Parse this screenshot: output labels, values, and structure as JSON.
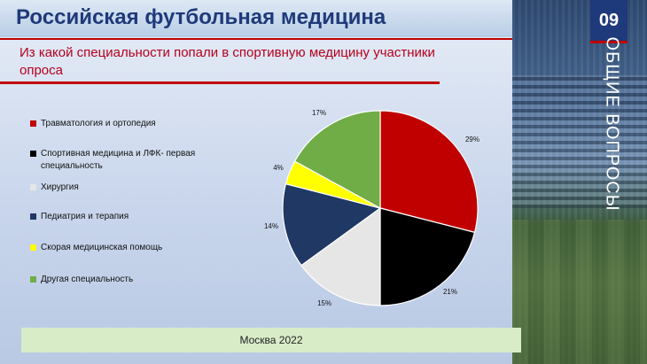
{
  "slide": {
    "title": "Российская футбольная медицина",
    "subtitle": "Из какой специальности попали в спортивную медицину участники опроса",
    "slide_number": "09",
    "section_title": "ОБЩИЕ ВОПРОСЫ",
    "footer": "Москва 2022"
  },
  "chart_data": {
    "type": "pie",
    "title": "",
    "slices": [
      {
        "label": "Травматология и ортопедия",
        "value": 29,
        "display": "29%",
        "color": "#c00000"
      },
      {
        "label": "Спортивная медицина и ЛФК- первая специальность",
        "value": 21,
        "display": "21%",
        "color": "#000000"
      },
      {
        "label": "Хирургия",
        "value": 15,
        "display": "15%",
        "color": "#e6e6e6"
      },
      {
        "label": "Педиатрия и терапия",
        "value": 14,
        "display": "14%",
        "color": "#1f3864"
      },
      {
        "label": "Скорая медицинская помощь",
        "value": 4,
        "display": "4%",
        "color": "#ffff00"
      },
      {
        "label": "Другая специальность",
        "value": 17,
        "display": "17%",
        "color": "#70ad47"
      }
    ],
    "legend_position": "left"
  }
}
